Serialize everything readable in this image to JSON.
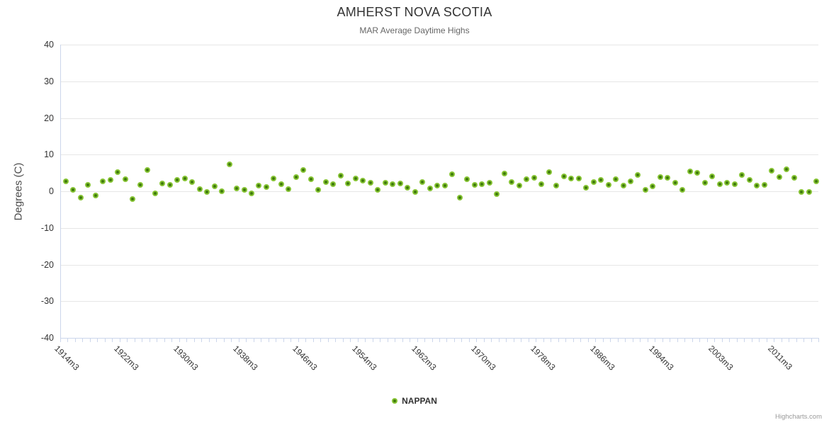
{
  "header": {
    "title": "AMHERST NOVA SCOTIA",
    "subtitle": "MAR Average Daytime Highs"
  },
  "legend": {
    "label": "NAPPAN"
  },
  "credits": {
    "label": "Highcharts.com"
  },
  "colors": {
    "marker_fill": "#3e7a0b",
    "marker_ring": "#87c435",
    "gridline": "#e6e6e6",
    "axis_line": "#ccd6eb",
    "title_text": "#333333",
    "subtitle_text": "#666666",
    "label_text": "#333333",
    "credits_text": "#999999"
  },
  "chart_data": {
    "type": "scatter",
    "title": "AMHERST NOVA SCOTIA",
    "subtitle": "MAR Average Daytime Highs",
    "xlabel": "",
    "ylabel": "Degrees (C)",
    "ylim": [
      -40,
      40
    ],
    "y_ticks": [
      40,
      30,
      20,
      10,
      0,
      -10,
      -20,
      -30,
      -40
    ],
    "grid": "horizontal",
    "legend_position": "bottom-center",
    "x_tick_interval": 8,
    "x_tick_labels": [
      "1914m3",
      "1922m3",
      "1930m3",
      "1938m3",
      "1946m3",
      "1954m3",
      "1962m3",
      "1970m3",
      "1978m3",
      "1986m3",
      "1994m3",
      "2003m3",
      "2011m3"
    ],
    "categories": [
      "1914m3",
      "1915m3",
      "1916m3",
      "1917m3",
      "1918m3",
      "1919m3",
      "1920m3",
      "1921m3",
      "1922m3",
      "1923m3",
      "1924m3",
      "1925m3",
      "1926m3",
      "1927m3",
      "1928m3",
      "1929m3",
      "1930m3",
      "1931m3",
      "1932m3",
      "1933m3",
      "1934m3",
      "1935m3",
      "1936m3",
      "1937m3",
      "1938m3",
      "1939m3",
      "1940m3",
      "1941m3",
      "1942m3",
      "1943m3",
      "1944m3",
      "1945m3",
      "1946m3",
      "1947m3",
      "1948m3",
      "1949m3",
      "1950m3",
      "1951m3",
      "1952m3",
      "1953m3",
      "1954m3",
      "1955m3",
      "1956m3",
      "1957m3",
      "1958m3",
      "1959m3",
      "1960m3",
      "1961m3",
      "1962m3",
      "1963m3",
      "1964m3",
      "1965m3",
      "1966m3",
      "1967m3",
      "1968m3",
      "1969m3",
      "1970m3",
      "1971m3",
      "1972m3",
      "1973m3",
      "1974m3",
      "1975m3",
      "1976m3",
      "1977m3",
      "1978m3",
      "1979m3",
      "1980m3",
      "1981m3",
      "1982m3",
      "1983m3",
      "1984m3",
      "1985m3",
      "1986m3",
      "1987m3",
      "1988m3",
      "1989m3",
      "1990m3",
      "1991m3",
      "1992m3",
      "1993m3",
      "1994m3",
      "1996m3",
      "1997m3",
      "1998m3",
      "1999m3",
      "2000m3",
      "2001m3",
      "2002m3",
      "2003m3",
      "2004m3",
      "2005m3",
      "2006m3",
      "2007m3",
      "2008m3",
      "2009m3",
      "2010m3",
      "2011m3",
      "2012m3",
      "2013m3",
      "2014m3",
      "2015m3",
      "2016m3"
    ],
    "series": [
      {
        "name": "NAPPAN",
        "color": "#87c435",
        "values": [
          2.6,
          0.3,
          -1.9,
          1.6,
          -1.3,
          2.7,
          3.0,
          5.2,
          3.2,
          -2.2,
          1.7,
          5.7,
          -0.6,
          2.1,
          1.7,
          2.9,
          3.4,
          2.5,
          0.5,
          -0.3,
          1.3,
          0.0,
          7.2,
          0.6,
          0.3,
          -0.7,
          1.4,
          1.0,
          3.4,
          1.9,
          0.4,
          3.7,
          5.7,
          3.1,
          0.2,
          2.4,
          1.9,
          4.1,
          2.1,
          3.4,
          2.8,
          2.3,
          0.3,
          2.3,
          1.8,
          2.0,
          0.8,
          -0.2,
          2.5,
          0.6,
          1.4,
          1.4,
          4.5,
          -1.9,
          3.2,
          1.7,
          1.9,
          2.3,
          -0.9,
          4.8,
          2.5,
          1.4,
          3.2,
          3.5,
          1.8,
          5.2,
          1.4,
          3.9,
          3.3,
          3.4,
          0.8,
          2.4,
          3.0,
          1.7,
          3.2,
          1.5,
          2.7,
          4.3,
          0.2,
          1.2,
          3.7,
          3.5,
          2.3,
          0.3,
          5.4,
          5.0,
          2.3,
          4.0,
          1.8,
          2.3,
          1.9,
          4.3,
          3.0,
          1.5,
          1.6,
          5.5,
          3.7,
          5.9,
          3.5,
          -0.3,
          -0.3,
          2.6
        ]
      }
    ]
  }
}
